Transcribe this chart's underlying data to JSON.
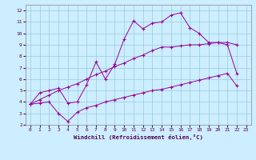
{
  "title": "",
  "xlabel": "Windchill (Refroidissement éolien,°C)",
  "bg_color": "#cceeff",
  "grid_color": "#99ccdd",
  "line_color": "#990099",
  "xlim": [
    -0.5,
    23.5
  ],
  "ylim": [
    2,
    12.5
  ],
  "xticks": [
    0,
    1,
    2,
    3,
    4,
    5,
    6,
    7,
    8,
    9,
    10,
    11,
    12,
    13,
    14,
    15,
    16,
    17,
    18,
    19,
    20,
    21,
    22,
    23
  ],
  "yticks": [
    2,
    3,
    4,
    5,
    6,
    7,
    8,
    9,
    10,
    11,
    12
  ],
  "line1_x": [
    0,
    1,
    2,
    3,
    4,
    5,
    6,
    7,
    8,
    9,
    10,
    11,
    12,
    13,
    14,
    15,
    16,
    17,
    18,
    19,
    20,
    21,
    22
  ],
  "line1_y": [
    3.8,
    4.8,
    5.0,
    5.2,
    3.9,
    4.0,
    5.5,
    7.5,
    6.0,
    7.3,
    9.5,
    11.1,
    10.4,
    10.9,
    11.0,
    11.6,
    11.8,
    10.5,
    10.0,
    9.2,
    9.2,
    9.0,
    6.5
  ],
  "line2_x": [
    0,
    1,
    2,
    3,
    4,
    5,
    6,
    7,
    8,
    9,
    10,
    11,
    12,
    13,
    14,
    15,
    16,
    17,
    18,
    19,
    20,
    21,
    22
  ],
  "line2_y": [
    3.8,
    4.2,
    4.6,
    5.0,
    5.3,
    5.6,
    6.0,
    6.4,
    6.7,
    7.1,
    7.4,
    7.8,
    8.1,
    8.5,
    8.8,
    8.8,
    8.9,
    9.0,
    9.0,
    9.1,
    9.2,
    9.2,
    9.0
  ],
  "line3_x": [
    0,
    1,
    2,
    3,
    4,
    5,
    6,
    7,
    8,
    9,
    10,
    11,
    12,
    13,
    14,
    15,
    16,
    17,
    18,
    19,
    20,
    21,
    22
  ],
  "line3_y": [
    3.8,
    3.9,
    4.0,
    3.0,
    2.3,
    3.1,
    3.5,
    3.7,
    4.0,
    4.2,
    4.4,
    4.6,
    4.8,
    5.0,
    5.1,
    5.3,
    5.5,
    5.7,
    5.9,
    6.1,
    6.3,
    6.5,
    5.4
  ]
}
